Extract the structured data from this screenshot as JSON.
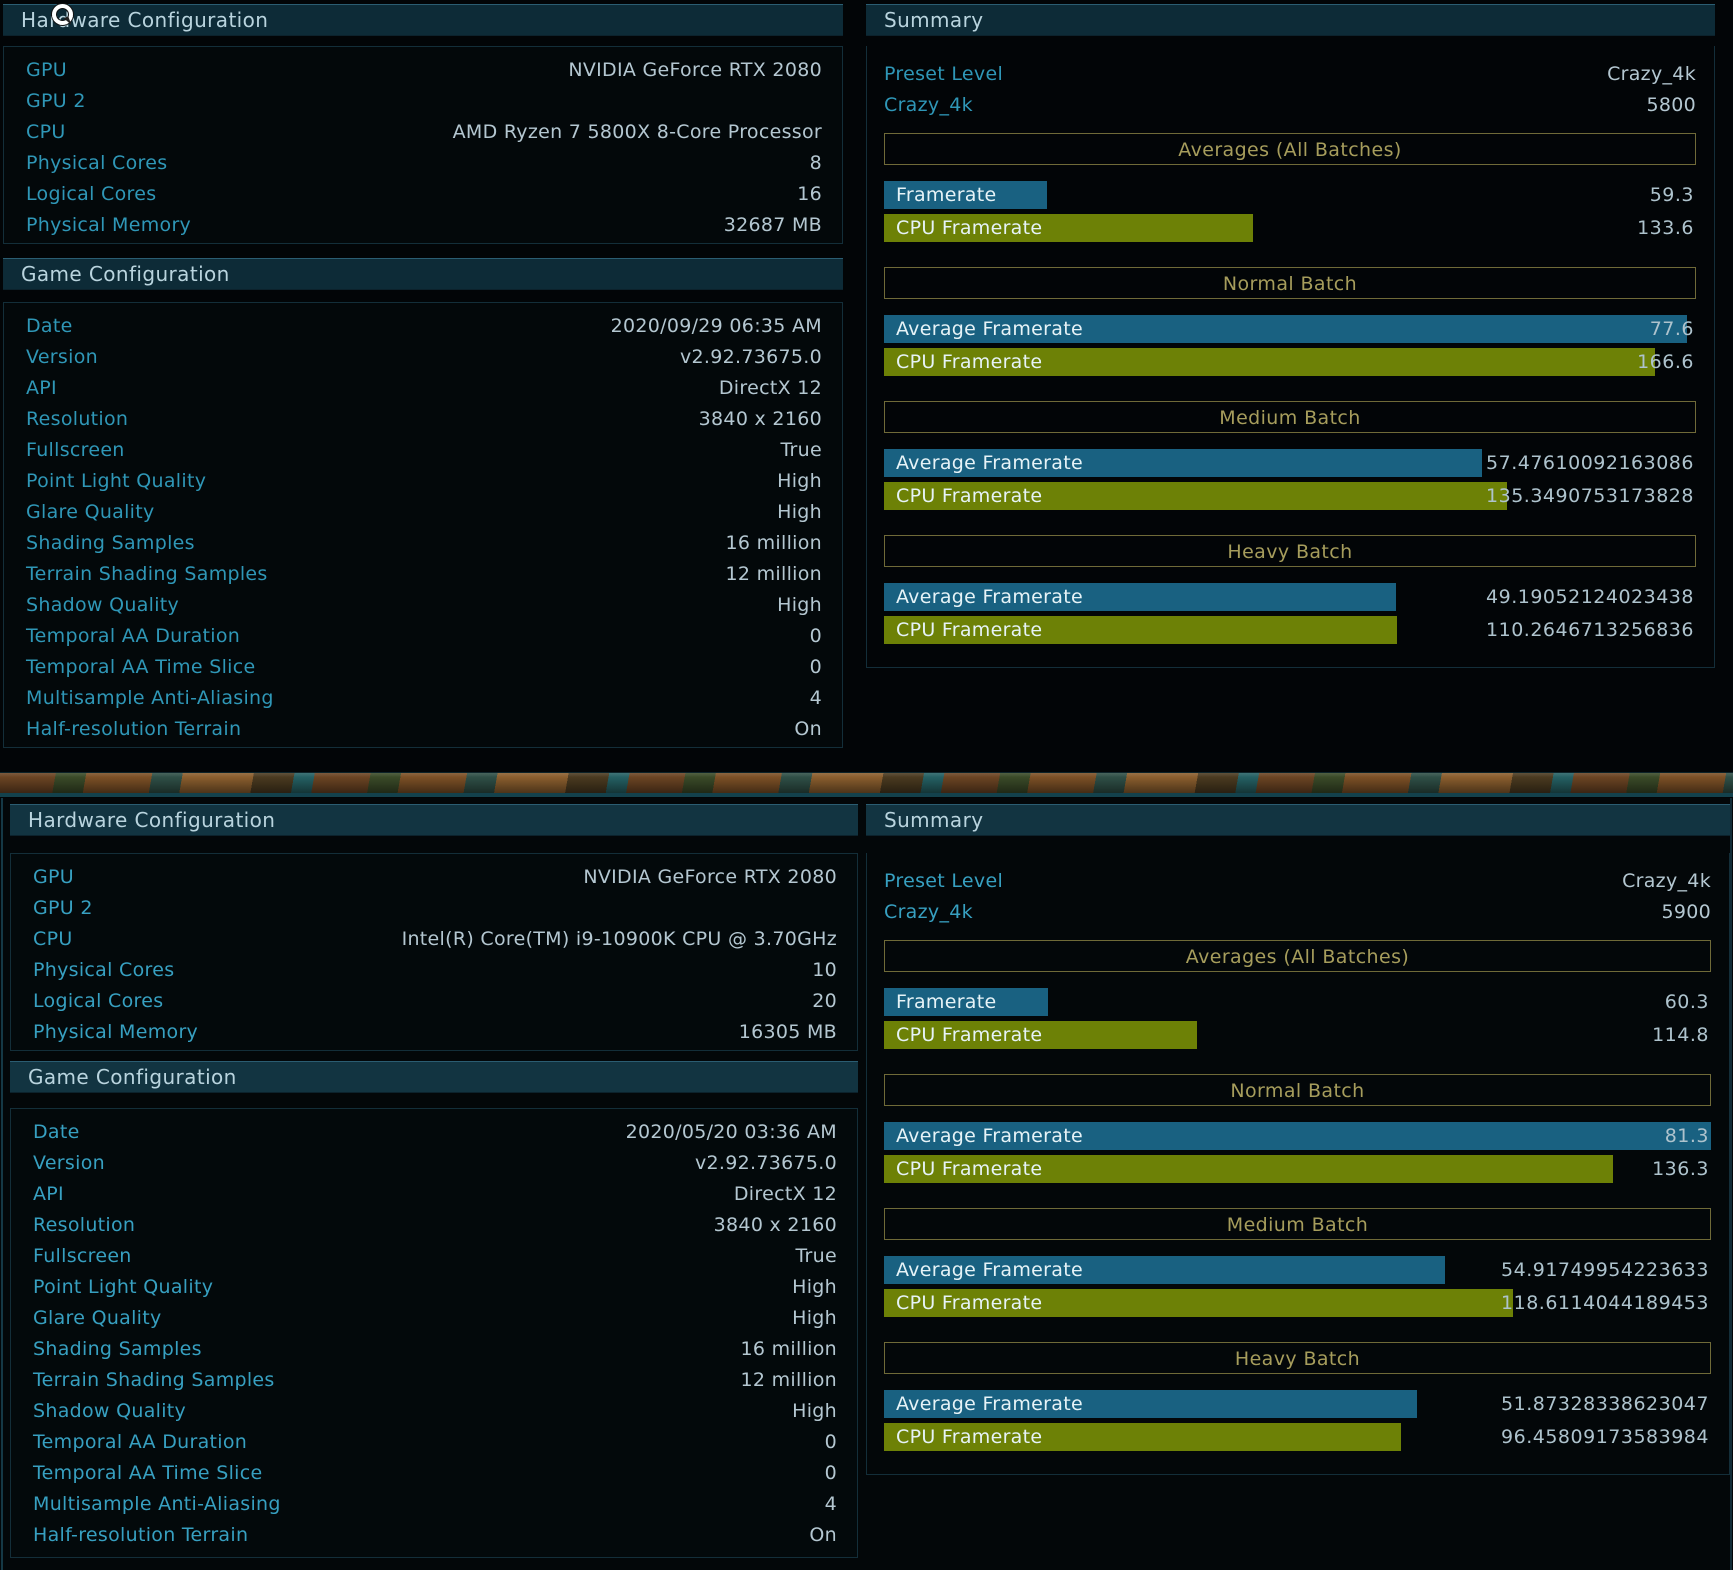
{
  "colors": {
    "background": "#020507",
    "header_band": "#0d2b37",
    "label_cyan": "#2f97b7",
    "value_text": "#b4c7d1",
    "batch_box_border": "#6f6a38",
    "batch_box_text": "#a69d5c",
    "framerate_bar_blue": "#196181",
    "cpu_framerate_bar_green": "#6d8106"
  },
  "runs": [
    {
      "hardware": {
        "title": "Hardware Configuration",
        "rows": [
          {
            "label": "GPU",
            "value": "NVIDIA GeForce RTX 2080"
          },
          {
            "label": "GPU 2",
            "value": ""
          },
          {
            "label": "CPU",
            "value": "AMD Ryzen 7 5800X 8-Core Processor"
          },
          {
            "label": "Physical Cores",
            "value": "8"
          },
          {
            "label": "Logical Cores",
            "value": "16"
          },
          {
            "label": "Physical Memory",
            "value": "32687 MB"
          }
        ]
      },
      "game": {
        "title": "Game Configuration",
        "rows": [
          {
            "label": "Date",
            "value": "2020/09/29 06:35 AM"
          },
          {
            "label": "Version",
            "value": "v2.92.73675.0"
          },
          {
            "label": "API",
            "value": "DirectX 12"
          },
          {
            "label": "Resolution",
            "value": "3840 x 2160"
          },
          {
            "label": "Fullscreen",
            "value": "True"
          },
          {
            "label": "Point Light Quality",
            "value": "High"
          },
          {
            "label": "Glare Quality",
            "value": "High"
          },
          {
            "label": "Shading Samples",
            "value": "16 million"
          },
          {
            "label": "Terrain Shading Samples",
            "value": "12 million"
          },
          {
            "label": "Shadow Quality",
            "value": "High"
          },
          {
            "label": "Temporal AA Duration",
            "value": "0"
          },
          {
            "label": "Temporal AA Time Slice",
            "value": "0"
          },
          {
            "label": "Multisample Anti-Aliasing",
            "value": "4"
          },
          {
            "label": "Half-resolution Terrain",
            "value": "On"
          }
        ]
      },
      "summary": {
        "title": "Summary",
        "preset": {
          "label": "Preset Level",
          "value": "Crazy_4k"
        },
        "score": {
          "label": "Crazy_4k",
          "value": "5800"
        },
        "sections": [
          {
            "header": "Averages (All Batches)",
            "bars": [
              {
                "label": "Framerate",
                "value": "59.3",
                "color": "blue",
                "width_pct": 20.1
              },
              {
                "label": "CPU Framerate",
                "value": "133.6",
                "color": "green",
                "width_pct": 45.4
              }
            ]
          },
          {
            "header": "Normal Batch",
            "bars": [
              {
                "label": "Average Framerate",
                "value": "77.6",
                "color": "blue",
                "width_pct": 98.9
              },
              {
                "label": "CPU Framerate",
                "value": "166.6",
                "color": "green",
                "width_pct": 94.9
              }
            ]
          },
          {
            "header": "Medium Batch",
            "bars": [
              {
                "label": "Average Framerate",
                "value": "57.47610092163086",
                "color": "blue",
                "width_pct": 73.6
              },
              {
                "label": "CPU Framerate",
                "value": "135.3490753173828",
                "color": "green",
                "width_pct": 76.7
              }
            ]
          },
          {
            "header": "Heavy Batch",
            "bars": [
              {
                "label": "Average Framerate",
                "value": "49.19052124023438",
                "color": "blue",
                "width_pct": 63.1
              },
              {
                "label": "CPU Framerate",
                "value": "110.2646713256836",
                "color": "green",
                "width_pct": 63.2
              }
            ]
          }
        ]
      }
    },
    {
      "hardware": {
        "title": "Hardware Configuration",
        "rows": [
          {
            "label": "GPU",
            "value": "NVIDIA GeForce RTX 2080"
          },
          {
            "label": "GPU 2",
            "value": ""
          },
          {
            "label": "CPU",
            "value": "Intel(R) Core(TM) i9-10900K CPU @ 3.70GHz"
          },
          {
            "label": "Physical Cores",
            "value": "10"
          },
          {
            "label": "Logical Cores",
            "value": "20"
          },
          {
            "label": "Physical Memory",
            "value": "16305 MB"
          }
        ]
      },
      "game": {
        "title": "Game Configuration",
        "rows": [
          {
            "label": "Date",
            "value": "2020/05/20 03:36 AM"
          },
          {
            "label": "Version",
            "value": "v2.92.73675.0"
          },
          {
            "label": "API",
            "value": "DirectX 12"
          },
          {
            "label": "Resolution",
            "value": "3840 x 2160"
          },
          {
            "label": "Fullscreen",
            "value": "True"
          },
          {
            "label": "Point Light Quality",
            "value": "High"
          },
          {
            "label": "Glare Quality",
            "value": "High"
          },
          {
            "label": "Shading Samples",
            "value": "16 million"
          },
          {
            "label": "Terrain Shading Samples",
            "value": "12 million"
          },
          {
            "label": "Shadow Quality",
            "value": "High"
          },
          {
            "label": "Temporal AA Duration",
            "value": "0"
          },
          {
            "label": "Temporal AA Time Slice",
            "value": "0"
          },
          {
            "label": "Multisample Anti-Aliasing",
            "value": "4"
          },
          {
            "label": "Half-resolution Terrain",
            "value": "On"
          }
        ]
      },
      "summary": {
        "title": "Summary",
        "preset": {
          "label": "Preset Level",
          "value": "Crazy_4k"
        },
        "score": {
          "label": "Crazy_4k",
          "value": "5900"
        },
        "sections": [
          {
            "header": "Averages (All Batches)",
            "bars": [
              {
                "label": "Framerate",
                "value": "60.3",
                "color": "blue",
                "width_pct": 19.8
              },
              {
                "label": "CPU Framerate",
                "value": "114.8",
                "color": "green",
                "width_pct": 37.9
              }
            ]
          },
          {
            "header": "Normal Batch",
            "bars": [
              {
                "label": "Average Framerate",
                "value": "81.3",
                "color": "blue",
                "width_pct": 100
              },
              {
                "label": "CPU Framerate",
                "value": "136.3",
                "color": "green",
                "width_pct": 88.1
              }
            ]
          },
          {
            "header": "Medium Batch",
            "bars": [
              {
                "label": "Average Framerate",
                "value": "54.91749954223633",
                "color": "blue",
                "width_pct": 67.8
              },
              {
                "label": "CPU Framerate",
                "value": "118.6114044189453",
                "color": "green",
                "width_pct": 76.1
              }
            ]
          },
          {
            "header": "Heavy Batch",
            "bars": [
              {
                "label": "Average Framerate",
                "value": "51.87328338623047",
                "color": "blue",
                "width_pct": 64.5
              },
              {
                "label": "CPU Framerate",
                "value": "96.45809173583984",
                "color": "green",
                "width_pct": 62.5
              }
            ]
          }
        ]
      }
    }
  ]
}
